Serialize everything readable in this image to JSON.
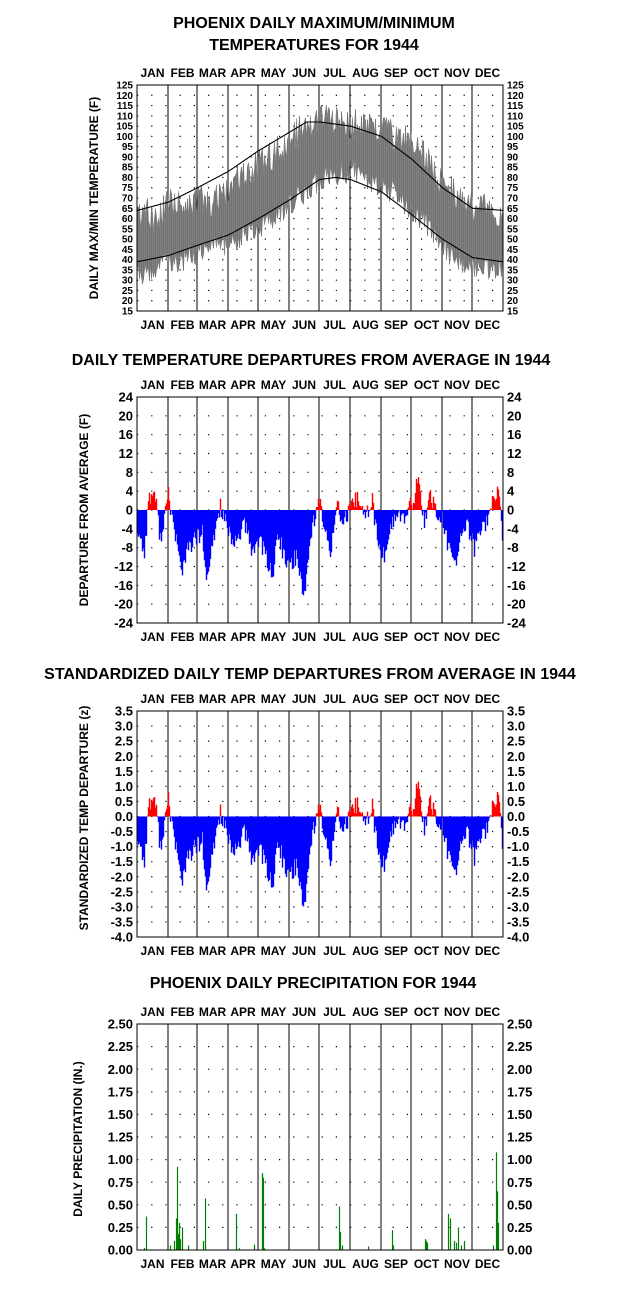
{
  "chart_data": [
    {
      "type": "area",
      "title": "PHOENIX DAILY MAXIMUM/MINIMUM\nTEMPERATURES FOR 1944",
      "ylabel": "DAILY MAX/MIN TEMPERATURE (F)",
      "xlabel": "",
      "months": [
        "JAN",
        "FEB",
        "MAR",
        "APR",
        "MAY",
        "JUN",
        "JUL",
        "AUG",
        "SEP",
        "OCT",
        "NOV",
        "DEC"
      ],
      "ylim": [
        15,
        125
      ],
      "yticks": [
        15,
        20,
        25,
        30,
        35,
        40,
        45,
        50,
        55,
        60,
        65,
        70,
        75,
        80,
        85,
        90,
        95,
        100,
        105,
        110,
        115,
        120,
        125
      ],
      "ytick_labels": [
        "15",
        "20",
        "25",
        "30",
        "35",
        "40",
        "45",
        "50",
        "55",
        "60",
        "65",
        "70",
        "75",
        "80",
        "85",
        "90",
        "95",
        "100",
        "105",
        "110",
        "115",
        "120",
        "125"
      ],
      "grid": "dotted",
      "colors": {
        "range_fill": "#808080",
        "normal_line": "#000000"
      },
      "series": [
        {
          "key": "normal_max",
          "days": [
            1,
            32,
            61,
            92,
            122,
            153,
            170,
            183,
            214,
            245,
            275,
            306,
            336,
            366
          ],
          "values": [
            64,
            68,
            75,
            83,
            93,
            102,
            107,
            107,
            105,
            100,
            89,
            75,
            65,
            64
          ]
        },
        {
          "key": "normal_min",
          "days": [
            1,
            32,
            61,
            92,
            122,
            153,
            183,
            199,
            214,
            245,
            275,
            306,
            336,
            366
          ],
          "values": [
            39,
            42,
            47,
            52,
            60,
            69,
            79,
            80,
            79,
            73,
            62,
            50,
            41,
            39
          ]
        },
        {
          "key": "observed_max",
          "days": [
            1,
            10,
            20,
            32,
            45,
            61,
            75,
            92,
            105,
            122,
            135,
            153,
            165,
            183,
            192,
            214,
            230,
            245,
            260,
            275,
            290,
            306,
            320,
            336,
            350,
            366
          ],
          "values": [
            58,
            62,
            60,
            67,
            65,
            70,
            68,
            75,
            80,
            86,
            90,
            98,
            104,
            108,
            110,
            106,
            104,
            103,
            100,
            98,
            88,
            78,
            70,
            66,
            65,
            62
          ]
        },
        {
          "key": "observed_min",
          "days": [
            1,
            10,
            20,
            32,
            45,
            61,
            75,
            92,
            105,
            122,
            135,
            153,
            165,
            183,
            192,
            214,
            230,
            245,
            260,
            275,
            290,
            306,
            320,
            336,
            350,
            366
          ],
          "values": [
            35,
            33,
            36,
            38,
            40,
            44,
            46,
            48,
            52,
            56,
            60,
            66,
            72,
            78,
            82,
            83,
            80,
            76,
            72,
            64,
            56,
            46,
            40,
            36,
            36,
            37
          ]
        }
      ]
    },
    {
      "type": "bar",
      "title": "DAILY TEMPERATURE DEPARTURES FROM AVERAGE IN 1944",
      "ylabel": "DEPARTURE FROM AVERAGE (F)",
      "xlabel": "",
      "months": [
        "JAN",
        "FEB",
        "MAR",
        "APR",
        "MAY",
        "JUN",
        "JUL",
        "AUG",
        "SEP",
        "OCT",
        "NOV",
        "DEC"
      ],
      "ylim": [
        -24,
        24
      ],
      "yticks": [
        24,
        20,
        16,
        12,
        8,
        4,
        0,
        -4,
        -8,
        -12,
        -16,
        -20,
        -24
      ],
      "ytick_labels": [
        "24",
        "20",
        "16",
        "12",
        "8",
        "4",
        "0",
        "-4",
        "-8",
        "-12",
        "-16",
        "-20",
        "-24"
      ],
      "grid": "dotted",
      "colors": {
        "positive": "#ff0000",
        "negative": "#0000ff"
      },
      "scale": 1,
      "smax": 4.5
    },
    {
      "type": "bar",
      "title": "STANDARDIZED DAILY TEMP DEPARTURES FROM AVERAGE IN 1944",
      "ylabel": "STANDARDIZED TEMP DEPARTURE (z)",
      "xlabel": "",
      "months": [
        "JAN",
        "FEB",
        "MAR",
        "APR",
        "MAY",
        "JUN",
        "JUL",
        "AUG",
        "SEP",
        "OCT",
        "NOV",
        "DEC"
      ],
      "ylim": [
        -4.0,
        3.5
      ],
      "yticks": [
        3.5,
        3.0,
        2.5,
        2.0,
        1.5,
        1.0,
        0.5,
        0.0,
        -0.5,
        -1.0,
        -1.5,
        -2.0,
        -2.5,
        -3.0,
        -3.5,
        -4.0
      ],
      "ytick_labels": [
        "3.5",
        "3.0",
        "2.5",
        "2.0",
        "1.5",
        "1.0",
        "0.5",
        "0.0",
        "-0.5",
        "-1.0",
        "-1.5",
        "-2.0",
        "-2.5",
        "-3.0",
        "-3.5",
        "-4.0"
      ],
      "grid": "dotted",
      "colors": {
        "positive": "#ff0000",
        "negative": "#0000ff"
      },
      "scale": 0.165,
      "smax": 4.5
    },
    {
      "type": "bar",
      "title": "PHOENIX DAILY PRECIPITATION FOR 1944",
      "ylabel": "DAILY PRECIPITATION (IN.)",
      "xlabel": "",
      "months": [
        "JAN",
        "FEB",
        "MAR",
        "APR",
        "MAY",
        "JUN",
        "JUL",
        "AUG",
        "SEP",
        "OCT",
        "NOV",
        "DEC"
      ],
      "ylim": [
        0,
        2.5
      ],
      "yticks": [
        2.5,
        2.25,
        2.0,
        1.75,
        1.5,
        1.25,
        1.0,
        0.75,
        0.5,
        0.25,
        0.0
      ],
      "ytick_labels": [
        "2.50",
        "2.25",
        "2.00",
        "1.75",
        "1.50",
        "1.25",
        "1.00",
        "0.75",
        "0.50",
        "0.25",
        "0.00"
      ],
      "grid": "dotted",
      "colors": {
        "bar": "#008000"
      },
      "series": [
        {
          "key": "daily_precip",
          "days": [
            8,
            10,
            34,
            38,
            40,
            41,
            42,
            43,
            44,
            46,
            52,
            67,
            69,
            100,
            103,
            118,
            126,
            127,
            128,
            203,
            204,
            206,
            232,
            256,
            257,
            289,
            290,
            291,
            312,
            314,
            318,
            320,
            322,
            325,
            328,
            357,
            360,
            361,
            362
          ],
          "values": [
            0.02,
            0.37,
            0.05,
            0.1,
            0.35,
            0.92,
            0.18,
            0.3,
            0.12,
            0.25,
            0.05,
            0.1,
            0.57,
            0.4,
            0.02,
            0.06,
            0.85,
            0.8,
            0.02,
            0.48,
            0.2,
            0.05,
            0.04,
            0.22,
            0.05,
            0.12,
            0.1,
            0.08,
            0.4,
            0.35,
            0.1,
            0.08,
            0.25,
            0.05,
            0.1,
            0.05,
            1.08,
            0.65,
            0.3
          ]
        }
      ]
    }
  ]
}
